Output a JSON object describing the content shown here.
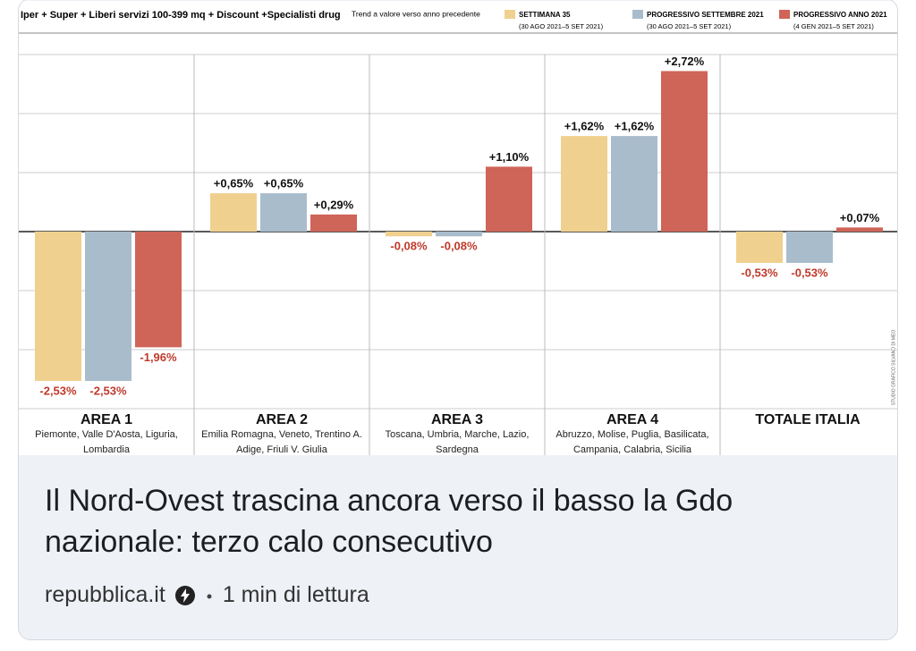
{
  "chart_data": {
    "type": "bar",
    "title": "Iper + Super + Liberi servizi 100-399 mq + Discount +Specialisti drug",
    "subtitle": "Trend a valore verso anno precedente",
    "categories": [
      "AREA 1",
      "AREA 2",
      "AREA 3",
      "AREA 4",
      "TOTALE ITALIA"
    ],
    "category_notes": [
      "Piemonte, Valle D'Aosta, Liguria, Lombardia",
      "Emilia Romagna, Veneto, Trentino A. Adige, Friuli V. Giulia",
      "Toscana, Umbria, Marche, Lazio, Sardegna",
      "Abruzzo, Molise, Puglia, Basilicata, Campania, Calabria, Sicilia",
      null
    ],
    "series": [
      {
        "name": "SETTIMANA 35",
        "period": "(30 AGO 2021–5 SET 2021)",
        "color": "#f0d08e",
        "values": [
          -2.53,
          0.65,
          -0.08,
          1.62,
          -0.53
        ],
        "value_labels": [
          "-2,53%",
          "+0,65%",
          "-0,08%",
          "+1,62%",
          "-0,53%"
        ]
      },
      {
        "name": "PROGRESSIVO SETTEMBRE 2021",
        "period": "(30 AGO 2021–5 SET 2021)",
        "color": "#a9bccb",
        "values": [
          -2.53,
          0.65,
          -0.08,
          1.62,
          -0.53
        ],
        "value_labels": [
          "-2,53%",
          "+0,65%",
          "-0,08%",
          "+1,62%",
          "-0,53%"
        ]
      },
      {
        "name": "PROGRESSIVO ANNO 2021",
        "period": "(4 GEN 2021–5 SET 2021)",
        "color": "#cf6458",
        "values": [
          -1.96,
          0.29,
          1.1,
          2.72,
          0.07
        ],
        "value_labels": [
          "-1,96%",
          "+0,29%",
          "+1,10%",
          "+2,72%",
          "+0,07%"
        ]
      }
    ],
    "ylim": [
      -3,
      3
    ],
    "yticks": [
      -3,
      -2,
      -1,
      0,
      1,
      2,
      3
    ],
    "grid": true,
    "credit": "STUDIO GRAFICO SILVANO DI MEO"
  },
  "card": {
    "title": "Il Nord-Ovest trascina ancora verso il basso la Gdo nazionale: terzo calo consecutivo",
    "source": "repubblica.it",
    "reading_time": "1 min di lettura"
  }
}
